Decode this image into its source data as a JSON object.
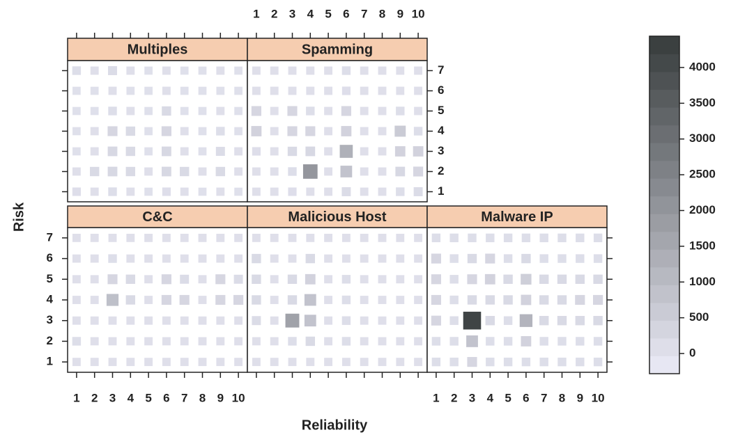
{
  "chart_data": {
    "type": "heatmap",
    "x_label": "Reliability",
    "y_label": "Risk",
    "x": [
      1,
      2,
      3,
      4,
      5,
      6,
      7,
      8,
      9,
      10
    ],
    "y": [
      1,
      2,
      3,
      4,
      5,
      6,
      7
    ],
    "xlim": [
      0.5,
      10.5
    ],
    "ylim": [
      0.5,
      7.5
    ],
    "zlim": [
      -282,
      4438
    ],
    "zticks": [
      0,
      500,
      1000,
      1500,
      2000,
      2500,
      3000,
      3500,
      4000
    ],
    "color_low": "#ececf8",
    "color_high": "#363b3b",
    "panels": [
      {
        "name": "Multiples",
        "values": [
          [
            80,
            60,
            100,
            60,
            50,
            80,
            60,
            50,
            60,
            50
          ],
          [
            60,
            200,
            250,
            200,
            60,
            250,
            200,
            60,
            200,
            60
          ],
          [
            50,
            60,
            250,
            200,
            50,
            250,
            60,
            50,
            150,
            60
          ],
          [
            50,
            60,
            300,
            200,
            50,
            300,
            60,
            50,
            100,
            50
          ],
          [
            50,
            50,
            100,
            60,
            50,
            200,
            50,
            50,
            60,
            50
          ],
          [
            50,
            50,
            60,
            50,
            50,
            60,
            50,
            50,
            50,
            50
          ],
          [
            100,
            60,
            150,
            60,
            50,
            60,
            50,
            50,
            60,
            50
          ]
        ]
      },
      {
        "name": "Spamming",
        "values": [
          [
            60,
            60,
            80,
            60,
            60,
            150,
            60,
            60,
            100,
            150
          ],
          [
            60,
            60,
            100,
            2000,
            60,
            800,
            60,
            60,
            250,
            300
          ],
          [
            80,
            60,
            200,
            250,
            60,
            1300,
            60,
            60,
            400,
            400
          ],
          [
            400,
            60,
            300,
            300,
            60,
            400,
            60,
            60,
            600,
            100
          ],
          [
            300,
            60,
            300,
            100,
            60,
            300,
            60,
            60,
            100,
            60
          ],
          [
            60,
            60,
            60,
            60,
            60,
            80,
            60,
            60,
            60,
            60
          ],
          [
            60,
            60,
            60,
            60,
            60,
            100,
            60,
            60,
            60,
            60
          ]
        ]
      },
      {
        "name": "C&C",
        "values": [
          [
            60,
            60,
            60,
            60,
            60,
            60,
            60,
            60,
            60,
            60
          ],
          [
            100,
            60,
            60,
            60,
            60,
            60,
            60,
            60,
            60,
            60
          ],
          [
            60,
            60,
            60,
            60,
            60,
            60,
            60,
            60,
            60,
            60
          ],
          [
            60,
            60,
            900,
            200,
            60,
            300,
            300,
            60,
            300,
            300
          ],
          [
            60,
            60,
            300,
            200,
            60,
            300,
            150,
            60,
            300,
            150
          ],
          [
            60,
            60,
            100,
            60,
            60,
            60,
            60,
            60,
            60,
            60
          ],
          [
            60,
            60,
            60,
            60,
            60,
            60,
            60,
            60,
            60,
            60
          ]
        ]
      },
      {
        "name": "Malicious Host",
        "values": [
          [
            60,
            60,
            60,
            60,
            60,
            60,
            60,
            60,
            60,
            60
          ],
          [
            60,
            60,
            100,
            200,
            60,
            100,
            60,
            60,
            60,
            60
          ],
          [
            150,
            60,
            1700,
            800,
            60,
            100,
            60,
            60,
            60,
            60
          ],
          [
            200,
            60,
            200,
            800,
            60,
            100,
            60,
            60,
            60,
            60
          ],
          [
            200,
            60,
            200,
            400,
            60,
            100,
            60,
            60,
            60,
            60
          ],
          [
            200,
            60,
            60,
            200,
            60,
            60,
            60,
            60,
            60,
            60
          ],
          [
            60,
            60,
            60,
            60,
            60,
            60,
            60,
            60,
            60,
            60
          ]
        ]
      },
      {
        "name": "Malware IP",
        "values": [
          [
            100,
            100,
            300,
            100,
            100,
            100,
            100,
            100,
            100,
            100
          ],
          [
            100,
            100,
            800,
            100,
            100,
            400,
            100,
            100,
            100,
            100
          ],
          [
            300,
            100,
            4200,
            200,
            100,
            1200,
            200,
            200,
            200,
            200
          ],
          [
            300,
            100,
            200,
            200,
            200,
            400,
            200,
            200,
            300,
            300
          ],
          [
            300,
            100,
            300,
            400,
            200,
            500,
            200,
            200,
            200,
            200
          ],
          [
            300,
            100,
            200,
            300,
            100,
            200,
            100,
            100,
            100,
            100
          ],
          [
            100,
            100,
            100,
            100,
            100,
            100,
            100,
            100,
            100,
            100
          ]
        ]
      }
    ]
  }
}
